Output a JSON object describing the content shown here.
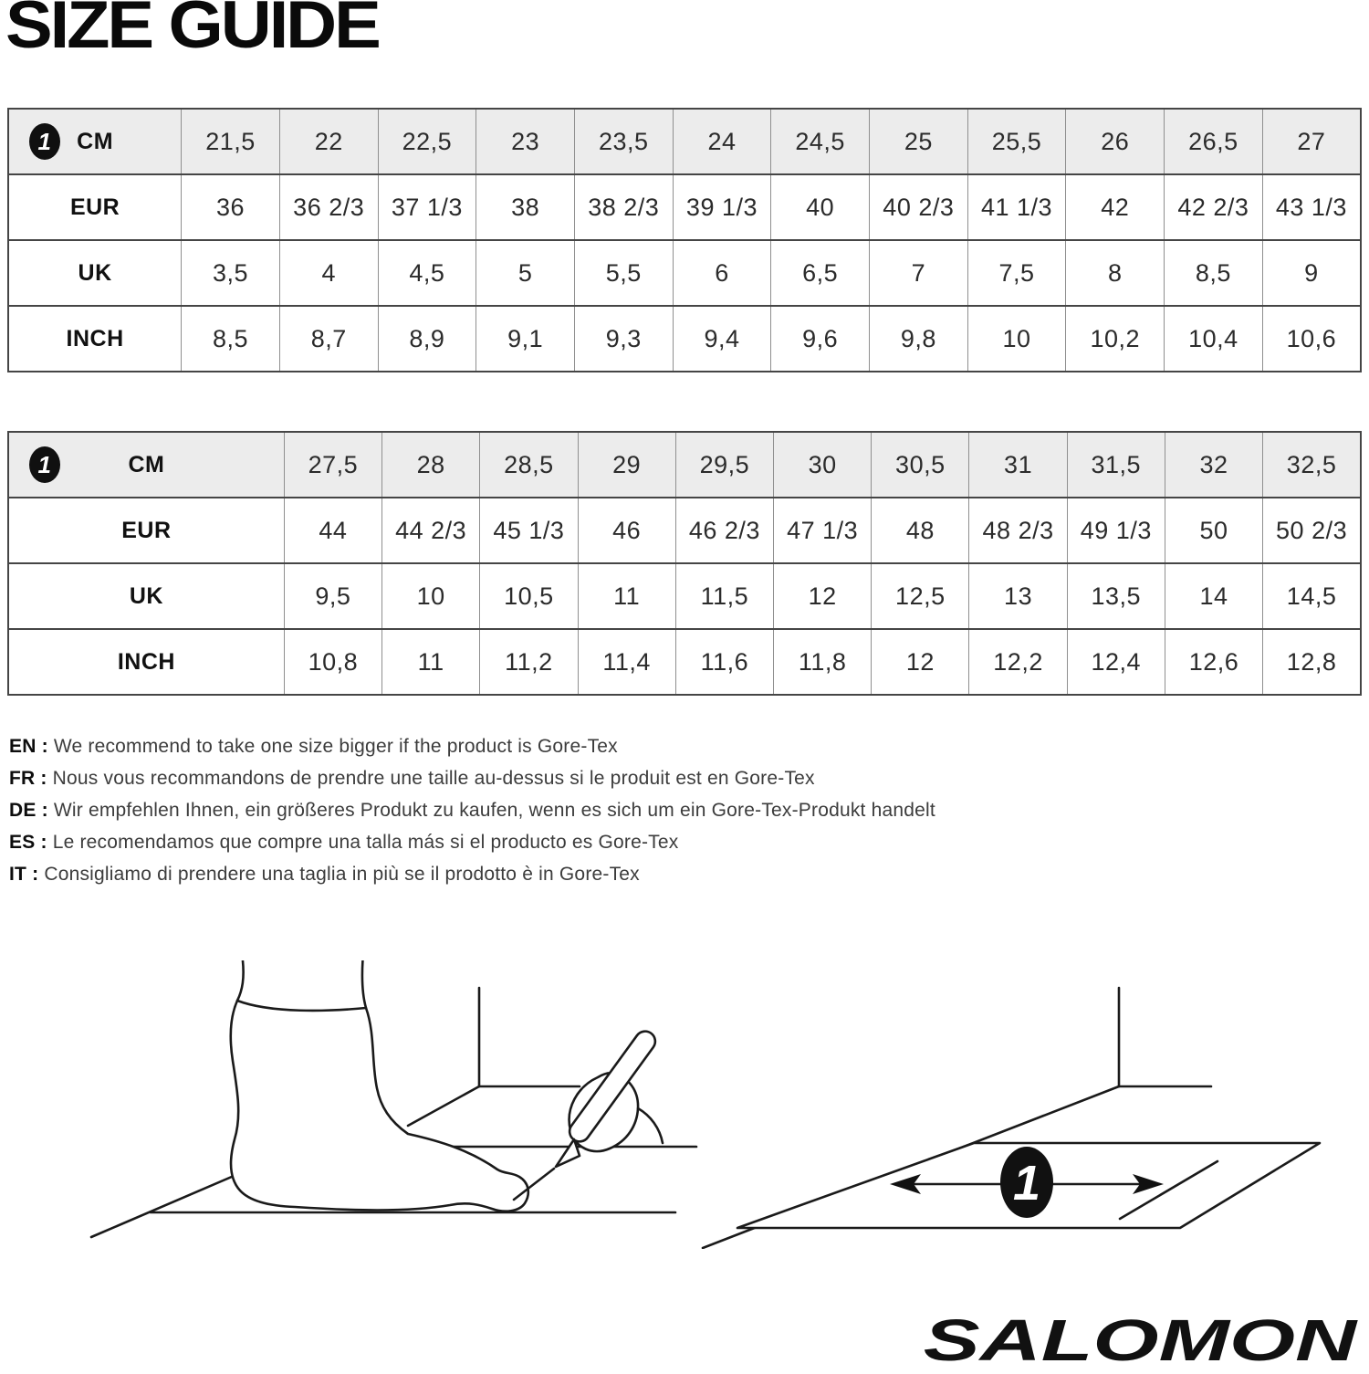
{
  "page": {
    "title": "SIZE GUIDE"
  },
  "tables": [
    {
      "icon_label": "1",
      "label_col_width": "12.8%",
      "header_row": {
        "label": "CM",
        "values": [
          "21,5",
          "22",
          "22,5",
          "23",
          "23,5",
          "24",
          "24,5",
          "25",
          "25,5",
          "26",
          "26,5",
          "27"
        ]
      },
      "rows": [
        {
          "label": "EUR",
          "values": [
            "36",
            "36 2/3",
            "37 1/3",
            "38",
            "38 2/3",
            "39 1/3",
            "40",
            "40 2/3",
            "41 1/3",
            "42",
            "42 2/3",
            "43 1/3"
          ]
        },
        {
          "label": "UK",
          "values": [
            "3,5",
            "4",
            "4,5",
            "5",
            "5,5",
            "6",
            "6,5",
            "7",
            "7,5",
            "8",
            "8,5",
            "9"
          ]
        },
        {
          "label": "INCH",
          "values": [
            "8,5",
            "8,7",
            "8,9",
            "9,1",
            "9,3",
            "9,4",
            "9,6",
            "9,8",
            "10",
            "10,2",
            "10,4",
            "10,6"
          ]
        }
      ]
    },
    {
      "icon_label": "1",
      "label_col_width": "20.4%",
      "header_row": {
        "label": "CM",
        "values": [
          "27,5",
          "28",
          "28,5",
          "29",
          "29,5",
          "30",
          "30,5",
          "31",
          "31,5",
          "32",
          "32,5"
        ]
      },
      "rows": [
        {
          "label": "EUR",
          "values": [
            "44",
            "44 2/3",
            "45 1/3",
            "46",
            "46 2/3",
            "47 1/3",
            "48",
            "48 2/3",
            "49 1/3",
            "50",
            "50 2/3"
          ]
        },
        {
          "label": "UK",
          "values": [
            "9,5",
            "10",
            "10,5",
            "11",
            "11,5",
            "12",
            "12,5",
            "13",
            "13,5",
            "14",
            "14,5"
          ]
        },
        {
          "label": "INCH",
          "values": [
            "10,8",
            "11",
            "11,2",
            "11,4",
            "11,6",
            "11,8",
            "12",
            "12,2",
            "12,4",
            "12,6",
            "12,8"
          ]
        }
      ]
    }
  ],
  "notes": [
    {
      "label": "EN :",
      "text": "We recommend to take one size bigger if the product is Gore-Tex"
    },
    {
      "label": "FR :",
      "text": "Nous vous recommandons de prendre une taille au-dessus si le produit est en Gore-Tex"
    },
    {
      "label": "DE :",
      "text": "Wir empfehlen Ihnen, ein größeres Produkt zu kaufen, wenn es sich um ein Gore-Tex-Produkt handelt"
    },
    {
      "label": "ES :",
      "text": "Le recomendamos que compre una talla más si el producto es Gore-Tex"
    },
    {
      "label": "IT :",
      "text": "Consigliamo di prendere una taglia in più se il prodotto è in Gore-Tex"
    }
  ],
  "figures": {
    "measurement_marker": "1"
  },
  "brand": {
    "logo_text": "SALOMON"
  }
}
